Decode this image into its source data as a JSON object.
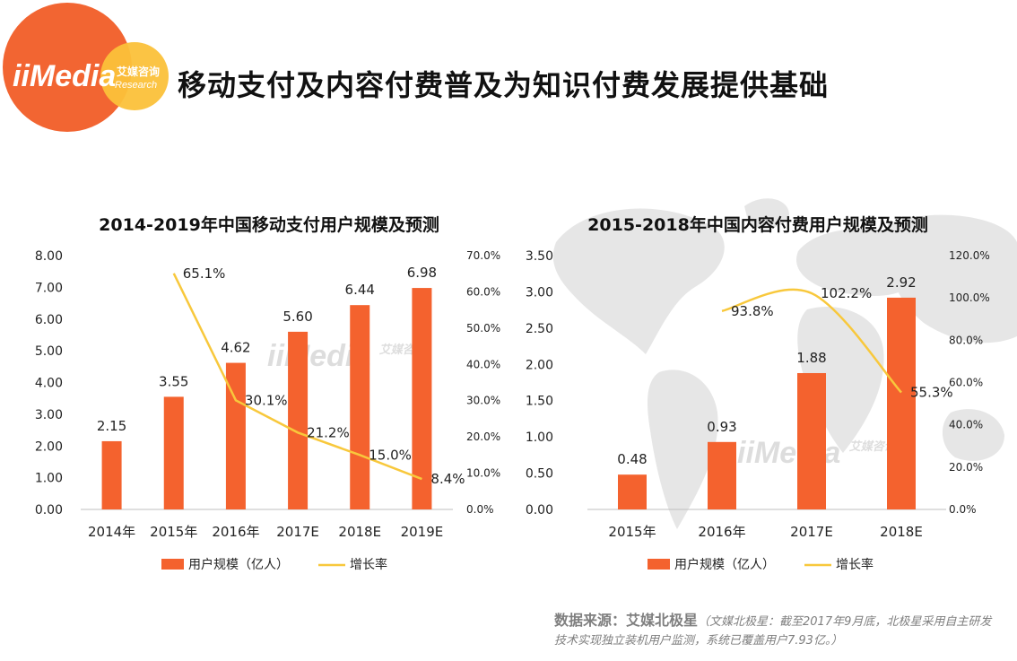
{
  "header": {
    "title": "移动支付及内容付费普及为知识付费发展提供基础",
    "logo_text": "iiMedia",
    "logo_cn": "艾媒咨询",
    "logo_en": "Research"
  },
  "watermark": {
    "text": "iiMedia",
    "cn": "艾媒咨询",
    "en": "Research"
  },
  "source": {
    "label": "数据来源：艾媒北极星",
    "note": "（文媒北极星：截至2017年9月底，北极星采用自主研发技术实现独立装机用户监测，系统已覆盖用户7.93亿。）"
  },
  "colors": {
    "bar": "#F4622E",
    "line": "#F8C83C",
    "logo_orange": "#F26532",
    "logo_yellow": "#FBC13A"
  },
  "chart_data": [
    {
      "type": "bar",
      "title": "2014-2019年中国移动支付用户规模及预测",
      "categories": [
        "2014年",
        "2015年",
        "2016年",
        "2017E",
        "2018E",
        "2019E"
      ],
      "series": [
        {
          "name": "用户规模（亿人）",
          "type": "bar",
          "axis": "left",
          "values": [
            2.15,
            3.55,
            4.62,
            5.6,
            6.44,
            6.98
          ],
          "labels": [
            "2.15",
            "3.55",
            "4.62",
            "5.60",
            "6.44",
            "6.98"
          ]
        },
        {
          "name": "增长率",
          "type": "line",
          "axis": "right",
          "values": [
            null,
            65.1,
            30.1,
            21.2,
            15.0,
            8.4
          ],
          "labels": [
            "",
            "65.1%",
            "30.1%",
            "21.2%",
            "15.0%",
            "8.4%"
          ]
        }
      ],
      "ylim": [
        0,
        8
      ],
      "y_ticks": [
        "0.00",
        "1.00",
        "2.00",
        "3.00",
        "4.00",
        "5.00",
        "6.00",
        "7.00",
        "8.00"
      ],
      "y2lim": [
        0,
        70
      ],
      "y2_ticks": [
        "0.0%",
        "10.0%",
        "20.0%",
        "30.0%",
        "40.0%",
        "50.0%",
        "60.0%",
        "70.0%"
      ],
      "legend": "bottom",
      "grid": false
    },
    {
      "type": "bar",
      "title": "2015-2018年中国内容付费用户规模及预测",
      "categories": [
        "2015年",
        "2016年",
        "2017E",
        "2018E"
      ],
      "series": [
        {
          "name": "用户规模（亿人）",
          "type": "bar",
          "axis": "left",
          "values": [
            0.48,
            0.93,
            1.88,
            2.92
          ],
          "labels": [
            "0.48",
            "0.93",
            "1.88",
            "2.92"
          ]
        },
        {
          "name": "增长率",
          "type": "line",
          "axis": "right",
          "values": [
            null,
            93.8,
            102.2,
            55.3
          ],
          "labels": [
            "",
            "93.8%",
            "102.2%",
            "55.3%"
          ]
        }
      ],
      "ylim": [
        0,
        3.5
      ],
      "y_ticks": [
        "0.00",
        "0.50",
        "1.00",
        "1.50",
        "2.00",
        "2.50",
        "3.00",
        "3.50"
      ],
      "y2lim": [
        0,
        120
      ],
      "y2_ticks": [
        "0.0%",
        "20.0%",
        "40.0%",
        "60.0%",
        "80.0%",
        "100.0%",
        "120.0%"
      ],
      "legend": "bottom",
      "grid": false
    }
  ]
}
